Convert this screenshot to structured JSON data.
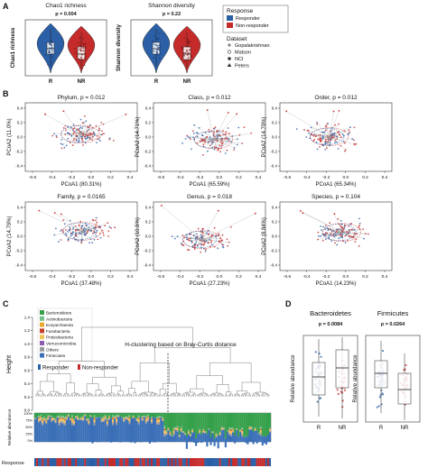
{
  "panels": {
    "a": "A",
    "b": "B",
    "c": "C",
    "d": "D"
  },
  "panel_a": {
    "plots": [
      {
        "title": "Chao1 richness",
        "p": "p = 0.004",
        "ylabel": "Chao1 richness",
        "categories": [
          "R",
          "NR"
        ]
      },
      {
        "title": "Shannon diversity",
        "p": "p = 0.22",
        "ylabel": "Shannon diversity",
        "categories": [
          "R",
          "NR"
        ]
      }
    ],
    "legend": {
      "response_title": "Response",
      "response_items": [
        {
          "label": "Responder",
          "color": "#2b5fa6"
        },
        {
          "label": "Non-responder",
          "color": "#c52b2b"
        }
      ],
      "dataset_title": "Dataset",
      "dataset_items": [
        {
          "label": "Gopalakrishnan",
          "marker": "plus"
        },
        {
          "label": "Matson",
          "marker": "circle-open"
        },
        {
          "label": "NCI",
          "marker": "circle"
        },
        {
          "label": "Peters",
          "marker": "triangle"
        }
      ]
    }
  },
  "panel_b": {
    "plots": [
      {
        "title": "Phylum, p = 0.012",
        "xlabel": "PCoA1 (80.31%)",
        "ylabel": "PCoA2 (11.0%)"
      },
      {
        "title": "Class, p = 0.012",
        "xlabel": "PCoA1 (65.59%)",
        "ylabel": "PCoA2 (14.71%)"
      },
      {
        "title": "Order, p = 0.012",
        "xlabel": "PCoA1 (65.34%)",
        "ylabel": "PCoA2 (14.79%)"
      },
      {
        "title": "Family, p = 0.0165",
        "xlabel": "PCoA1 (37.48%)",
        "ylabel": "PCoA2 (14.79%)"
      },
      {
        "title": "Genus, p = 0.018",
        "xlabel": "PCoA1 (27.23%)",
        "ylabel": "PCoA2 (10.5%)"
      },
      {
        "title": "Species, p = 0.104",
        "xlabel": "PCoA1 (14.23%)",
        "ylabel": "PCoA2 (8.84%)"
      }
    ],
    "xticks": [
      "-0.6",
      "-0.4",
      "-0.2",
      "0.0",
      "0.2",
      "0.4"
    ],
    "yticks": [
      "-0.4",
      "-0.2",
      "0.0",
      "0.2",
      "0.4"
    ]
  },
  "panel_c": {
    "title": "H-clustering based on Bray-Curtis distance",
    "ylabel": "Height",
    "yticks": [
      "0.0",
      "0.2",
      "0.4",
      "0.6",
      "0.8",
      "1.0",
      "1.2",
      "1.4"
    ],
    "ra_label": "Relative abundance",
    "ra_ticks": [
      "100%",
      "75%",
      "50%",
      "25%",
      "0%"
    ],
    "response_label": "Response",
    "response_legend": [
      {
        "label": "Responder",
        "color": "#2b5fa6"
      },
      {
        "label": "Non-responder",
        "color": "#c52b2b"
      }
    ],
    "taxa_legend": [
      {
        "label": "Bacteroidetes",
        "color": "#35a04a"
      },
      {
        "label": "Actinobacteria",
        "color": "#6fc08a"
      },
      {
        "label": "Euryarchaeota",
        "color": "#e8a72e"
      },
      {
        "label": "Fusobacteria",
        "color": "#c23f2a"
      },
      {
        "label": "Proteobacteria",
        "color": "#f0c659"
      },
      {
        "label": "Verrucomicrobia",
        "color": "#8e5ab0"
      },
      {
        "label": "Others",
        "color": "#9a9a9a"
      },
      {
        "label": "Firmicutes",
        "color": "#3a6fb7"
      }
    ]
  },
  "panel_d": {
    "plots": [
      {
        "title": "Bacteroidetes",
        "p": "p = 0.0084",
        "ylabel": "Relative abundance",
        "categories": [
          "R",
          "NR"
        ]
      },
      {
        "title": "Firmicutes",
        "p": "p = 0.0264",
        "ylabel": "Relative abundance",
        "categories": [
          "R",
          "NR"
        ]
      }
    ]
  }
}
